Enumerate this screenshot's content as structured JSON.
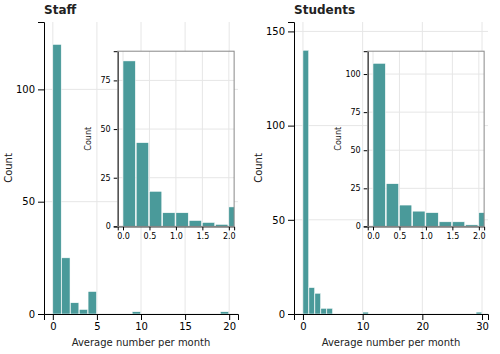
{
  "chart_data": [
    {
      "type": "histogram",
      "title": "Staff",
      "xlabel": "Average number per month",
      "ylabel": "Count",
      "bins": [
        0,
        1,
        2,
        3,
        4,
        5,
        9,
        10,
        19,
        20
      ],
      "values": [
        120,
        25,
        5,
        2,
        10,
        0,
        1,
        0,
        1
      ],
      "color": "#4a9a9a",
      "xlim": [
        -1,
        21
      ],
      "ylim": [
        0,
        130
      ],
      "xticks": [
        0,
        5,
        10,
        15,
        20
      ],
      "yticks": [
        0,
        50,
        100
      ],
      "grid": true
    },
    {
      "type": "bar",
      "ylabel": "Count",
      "x": [
        0.0,
        0.25,
        0.5,
        0.75,
        1.0,
        1.25,
        1.5,
        1.75,
        2.0
      ],
      "values": [
        85,
        43,
        18,
        7,
        7,
        3,
        2,
        1,
        10
      ],
      "color": "#4a9a9a",
      "xlim": [
        -0.1,
        2.1
      ],
      "ylim": [
        0,
        90
      ],
      "xticks": [
        {
          "value": 0,
          "label": "0.0"
        },
        0.5,
        {
          "value": 1,
          "label": "1.0"
        },
        1.5,
        {
          "value": 2,
          "label": "2.0"
        }
      ],
      "yticks": [
        0,
        25,
        50,
        75
      ],
      "grid": true
    },
    {
      "type": "histogram",
      "title": "Students",
      "xlabel": "Average number per month",
      "ylabel": "Count",
      "bins": [
        0,
        1,
        2,
        3,
        4,
        5,
        10,
        11,
        29,
        30
      ],
      "values": [
        140,
        14,
        11,
        3,
        3,
        0,
        1,
        0,
        1
      ],
      "color": "#4a9a9a",
      "xlim": [
        -1.5,
        31
      ],
      "ylim": [
        0,
        155
      ],
      "xticks": [
        0,
        10,
        20,
        30
      ],
      "yticks": [
        0,
        50,
        100,
        150
      ],
      "grid": true
    },
    {
      "type": "bar",
      "ylabel": "Count",
      "x": [
        0.0,
        0.25,
        0.5,
        0.75,
        1.0,
        1.25,
        1.5,
        1.75,
        2.0
      ],
      "values": [
        107,
        28,
        14,
        10,
        9,
        3,
        3,
        1,
        9
      ],
      "color": "#4a9a9a",
      "xlim": [
        -0.1,
        2.1
      ],
      "ylim": [
        0,
        115
      ],
      "xticks": [
        {
          "value": 0,
          "label": "0.0"
        },
        0.5,
        {
          "value": 1,
          "label": "1.0"
        },
        1.5,
        {
          "value": 2,
          "label": "2.0"
        }
      ],
      "yticks": [
        0,
        25,
        50,
        75,
        100
      ],
      "grid": true
    }
  ]
}
